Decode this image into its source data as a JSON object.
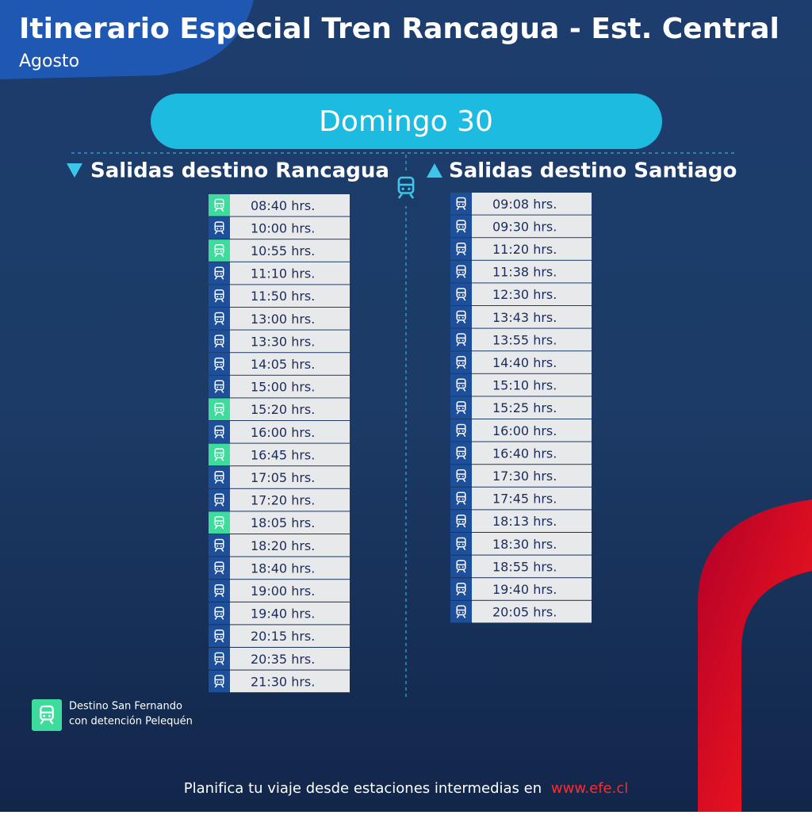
{
  "header": {
    "title": "Itinerario Especial Tren Rancagua - Est. Central",
    "subtitle": "Agosto"
  },
  "day": "Domingo 30",
  "columns": [
    {
      "heading": "Salidas destino Rancagua",
      "rows": [
        {
          "time": "08:40 hrs.",
          "san_fernando": true
        },
        {
          "time": "10:00 hrs.",
          "san_fernando": false
        },
        {
          "time": "10:55 hrs.",
          "san_fernando": true
        },
        {
          "time": "11:10 hrs.",
          "san_fernando": false
        },
        {
          "time": "11:50 hrs.",
          "san_fernando": false
        },
        {
          "time": "13:00 hrs.",
          "san_fernando": false
        },
        {
          "time": "13:30 hrs.",
          "san_fernando": false
        },
        {
          "time": "14:05 hrs.",
          "san_fernando": false
        },
        {
          "time": "15:00 hrs.",
          "san_fernando": false
        },
        {
          "time": "15:20 hrs.",
          "san_fernando": true
        },
        {
          "time": "16:00 hrs.",
          "san_fernando": false
        },
        {
          "time": "16:45 hrs.",
          "san_fernando": true
        },
        {
          "time": "17:05 hrs.",
          "san_fernando": false
        },
        {
          "time": "17:20 hrs.",
          "san_fernando": false
        },
        {
          "time": "18:05 hrs.",
          "san_fernando": true
        },
        {
          "time": "18:20 hrs.",
          "san_fernando": false
        },
        {
          "time": "18:40 hrs.",
          "san_fernando": false
        },
        {
          "time": "19:00 hrs.",
          "san_fernando": false
        },
        {
          "time": "19:40 hrs.",
          "san_fernando": false
        },
        {
          "time": "20:15 hrs.",
          "san_fernando": false
        },
        {
          "time": "20:35 hrs.",
          "san_fernando": false
        },
        {
          "time": "21:30 hrs.",
          "san_fernando": false
        }
      ]
    },
    {
      "heading": "Salidas destino Santiago",
      "rows": [
        {
          "time": "09:08 hrs.",
          "san_fernando": false
        },
        {
          "time": "09:30 hrs.",
          "san_fernando": false
        },
        {
          "time": "11:20 hrs.",
          "san_fernando": false
        },
        {
          "time": "11:38 hrs.",
          "san_fernando": false
        },
        {
          "time": "12:30 hrs.",
          "san_fernando": false
        },
        {
          "time": "13:43 hrs.",
          "san_fernando": false
        },
        {
          "time": "13:55 hrs.",
          "san_fernando": false
        },
        {
          "time": "14:40 hrs.",
          "san_fernando": false
        },
        {
          "time": "15:10 hrs.",
          "san_fernando": false
        },
        {
          "time": "15:25 hrs.",
          "san_fernando": false
        },
        {
          "time": "16:00 hrs.",
          "san_fernando": false
        },
        {
          "time": "16:40 hrs.",
          "san_fernando": false
        },
        {
          "time": "17:30 hrs.",
          "san_fernando": false
        },
        {
          "time": "17:45 hrs.",
          "san_fernando": false
        },
        {
          "time": "18:13 hrs.",
          "san_fernando": false
        },
        {
          "time": "18:30 hrs.",
          "san_fernando": false
        },
        {
          "time": "18:55 hrs.",
          "san_fernando": false
        },
        {
          "time": "19:40 hrs.",
          "san_fernando": false
        },
        {
          "time": "20:05 hrs.",
          "san_fernando": false
        }
      ]
    }
  ],
  "legend": {
    "line1": "Destino San Fernando",
    "line2": "con detención Pelequén"
  },
  "footer": {
    "text": "Planifica tu viaje desde estaciones intermedias en",
    "link": "www.efe.cl"
  }
}
